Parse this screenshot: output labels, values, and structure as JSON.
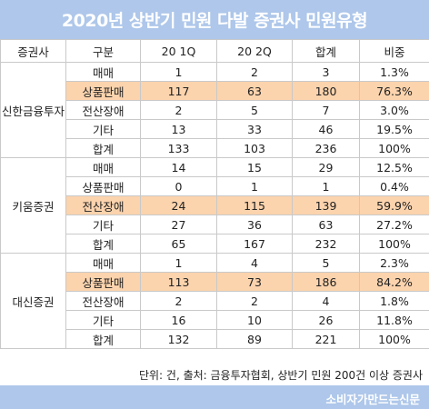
{
  "title": "2020년 상반기 민원 다발 증권사 민원유형",
  "columns": [
    "증권사",
    "구분",
    "20 1Q",
    "20 2Q",
    "합계",
    "비중"
  ],
  "groups": [
    {
      "company": "신한금융투자",
      "rows": [
        {
          "type": "매매",
          "q1": "1",
          "q2": "2",
          "total": "3",
          "share": "1.3%",
          "highlight": false
        },
        {
          "type": "상품판매",
          "q1": "117",
          "q2": "63",
          "total": "180",
          "share": "76.3%",
          "highlight": true
        },
        {
          "type": "전산장애",
          "q1": "2",
          "q2": "5",
          "total": "7",
          "share": "3.0%",
          "highlight": false
        },
        {
          "type": "기타",
          "q1": "13",
          "q2": "33",
          "total": "46",
          "share": "19.5%",
          "highlight": false
        },
        {
          "type": "합계",
          "q1": "133",
          "q2": "103",
          "total": "236",
          "share": "100%",
          "highlight": false
        }
      ]
    },
    {
      "company": "키움증권",
      "rows": [
        {
          "type": "매매",
          "q1": "14",
          "q2": "15",
          "total": "29",
          "share": "12.5%",
          "highlight": false
        },
        {
          "type": "상품판매",
          "q1": "0",
          "q2": "1",
          "total": "1",
          "share": "0.4%",
          "highlight": false
        },
        {
          "type": "전산장애",
          "q1": "24",
          "q2": "115",
          "total": "139",
          "share": "59.9%",
          "highlight": true
        },
        {
          "type": "기타",
          "q1": "27",
          "q2": "36",
          "total": "63",
          "share": "27.2%",
          "highlight": false
        },
        {
          "type": "합계",
          "q1": "65",
          "q2": "167",
          "total": "232",
          "share": "100%",
          "highlight": false
        }
      ]
    },
    {
      "company": "대신증권",
      "rows": [
        {
          "type": "매매",
          "q1": "1",
          "q2": "4",
          "total": "5",
          "share": "2.3%",
          "highlight": false
        },
        {
          "type": "상품판매",
          "q1": "113",
          "q2": "73",
          "total": "186",
          "share": "84.2%",
          "highlight": true
        },
        {
          "type": "전산장애",
          "q1": "2",
          "q2": "2",
          "total": "4",
          "share": "1.8%",
          "highlight": false
        },
        {
          "type": "기타",
          "q1": "16",
          "q2": "10",
          "total": "26",
          "share": "11.8%",
          "highlight": false
        },
        {
          "type": "합계",
          "q1": "132",
          "q2": "89",
          "total": "221",
          "share": "100%",
          "highlight": false
        }
      ]
    }
  ],
  "footnote": "단위: 건, 출처: 금융투자협회, 상반기 민원 200건 이상 증권사",
  "credit": "소비자가만드는신문",
  "colors": {
    "header_bg": "#aec7ea",
    "highlight": "#fbd3ad",
    "border": "#c9c9c9"
  }
}
